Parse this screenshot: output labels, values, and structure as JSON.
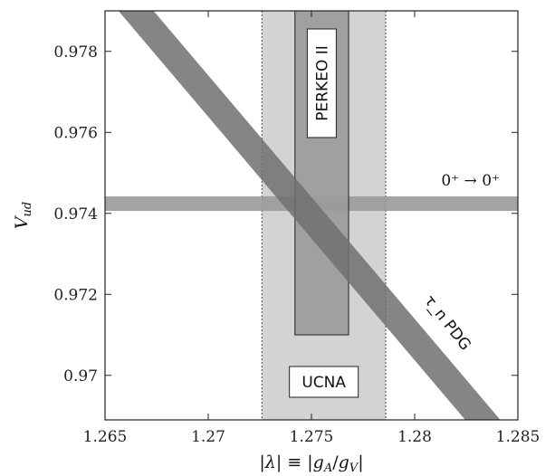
{
  "chart_data": {
    "type": "area",
    "title": "",
    "xlabel": "|λ| ≡ |g_A/g_V|",
    "ylabel": "V_ud",
    "xlim": [
      1.265,
      1.285
    ],
    "ylim": [
      0.9689,
      0.979
    ],
    "xticks": [
      1.265,
      1.27,
      1.275,
      1.28,
      1.285
    ],
    "xtick_labels": [
      "1.265",
      "1.27",
      "1.275",
      "1.28",
      "1.285"
    ],
    "yticks": [
      0.97,
      0.972,
      0.974,
      0.976,
      0.978
    ],
    "ytick_labels": [
      "0.97",
      "0.972",
      "0.974",
      "0.976",
      "0.978"
    ],
    "grid": false,
    "bands": [
      {
        "label": "UCNA",
        "kind": "vertical",
        "x_range": [
          1.2726,
          1.2786
        ],
        "y_range": [
          0.9689,
          0.979
        ],
        "color": "#d3d3d3",
        "dashed_edges": true
      },
      {
        "label": "PERKEO II",
        "kind": "vertical",
        "x_range": [
          1.2742,
          1.2768
        ],
        "y_range": [
          0.971,
          0.979
        ],
        "color": "#9a9a9a"
      },
      {
        "label": "0⁺ → 0⁺",
        "kind": "horizontal",
        "y_range": [
          0.97406,
          0.97442
        ],
        "x_range": [
          1.265,
          1.285
        ],
        "color": "#9a9a9a"
      },
      {
        "label": "τ_n PDG",
        "kind": "diagonal",
        "line_points": [
          [
            1.2665,
            0.979
          ],
          [
            1.2833,
            0.9689
          ]
        ],
        "width_x": 0.0017,
        "color": "#707070"
      }
    ]
  }
}
